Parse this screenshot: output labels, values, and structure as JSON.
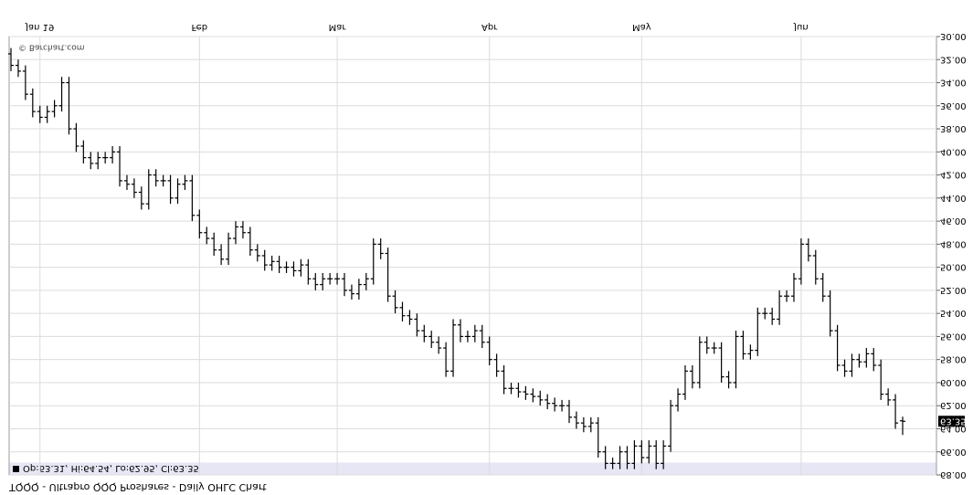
{
  "chart_data": {
    "type": "ohlc",
    "title": "TQQQ - Ultrapro QQQ Proshares - Daily OHLC Chart",
    "watermark": "© Barchart.com",
    "legend": "Op:63.31, Hi:64.54, Lo:62.95, Cl:63.35",
    "color": "#000000",
    "grid": true,
    "categories": [
      null,
      null,
      null,
      null,
      "Jan 19",
      null,
      null,
      null,
      null,
      null,
      null,
      null,
      null,
      null,
      null,
      null,
      null,
      null,
      null,
      null,
      null,
      null,
      null,
      null,
      null,
      null,
      "Feb",
      null,
      null,
      null,
      null,
      null,
      null,
      null,
      null,
      null,
      null,
      null,
      null,
      null,
      null,
      null,
      null,
      null,
      null,
      "Mar",
      null,
      null,
      null,
      null,
      null,
      null,
      null,
      null,
      null,
      null,
      null,
      null,
      null,
      null,
      null,
      null,
      null,
      null,
      null,
      null,
      "Apr",
      null,
      null,
      null,
      null,
      null,
      null,
      null,
      null,
      null,
      null,
      null,
      null,
      null,
      null,
      null,
      null,
      null,
      null,
      null,
      null,
      "May",
      null,
      null,
      null,
      null,
      null,
      null,
      null,
      null,
      null,
      null,
      null,
      null,
      null,
      null,
      null,
      null,
      null,
      null,
      null,
      null,
      null,
      "Jun",
      null,
      null,
      null,
      null,
      null,
      null,
      null,
      null,
      null,
      null,
      null,
      null,
      null,
      null
    ],
    "ohlc": [
      [
        31.5,
        33,
        31,
        32.5
      ],
      [
        32.5,
        33.5,
        32,
        33
      ],
      [
        33,
        35.5,
        32.5,
        35
      ],
      [
        35,
        37,
        34.5,
        36.5
      ],
      [
        36.5,
        37.5,
        36,
        37
      ],
      [
        37,
        37.5,
        36,
        36.5
      ],
      [
        36.5,
        37,
        35.5,
        36
      ],
      [
        36,
        36.5,
        33.5,
        34
      ],
      [
        34,
        38.5,
        33.5,
        38
      ],
      [
        38,
        40,
        37.5,
        39.5
      ],
      [
        39.5,
        41,
        39,
        40.5
      ],
      [
        40.5,
        41.5,
        40,
        41
      ],
      [
        41,
        41.5,
        40,
        40.5
      ],
      [
        40.5,
        41,
        40,
        40.5
      ],
      [
        40.5,
        41,
        39.5,
        40
      ],
      [
        40,
        43,
        39.5,
        42.5
      ],
      [
        42.5,
        43.3,
        42,
        42.8
      ],
      [
        42.8,
        44,
        42.3,
        43.5
      ],
      [
        43.5,
        45,
        43,
        44.5
      ],
      [
        44.5,
        45,
        41.5,
        42
      ],
      [
        42,
        43,
        41.5,
        42.5
      ],
      [
        42.5,
        43,
        42,
        42.5
      ],
      [
        42.5,
        44.5,
        42,
        44
      ],
      [
        44,
        44.5,
        42.3,
        42.8
      ],
      [
        42.8,
        43.3,
        42,
        42.5
      ],
      [
        42.5,
        46,
        42,
        45.5
      ],
      [
        45.5,
        47.5,
        45,
        47
      ],
      [
        47,
        48,
        46.5,
        47.5
      ],
      [
        47.5,
        49,
        47,
        48.5
      ],
      [
        48.5,
        49.8,
        48,
        49.3
      ],
      [
        49.3,
        49.8,
        47,
        47.5
      ],
      [
        47.5,
        48,
        46,
        46.5
      ],
      [
        46.5,
        47.5,
        46,
        47
      ],
      [
        47,
        49,
        46.5,
        48.5
      ],
      [
        48.5,
        49.5,
        48,
        49
      ],
      [
        49,
        50.3,
        48.5,
        49.8
      ],
      [
        49.8,
        50.3,
        49,
        49.5
      ],
      [
        49.5,
        50.5,
        49,
        50
      ],
      [
        50,
        50.5,
        49.5,
        50
      ],
      [
        50,
        50.8,
        49.5,
        50.3
      ],
      [
        50.3,
        50.8,
        49.3,
        49.8
      ],
      [
        49.8,
        51.5,
        49.3,
        51
      ],
      [
        51,
        52,
        50.5,
        51.5
      ],
      [
        51.5,
        52,
        50.5,
        51
      ],
      [
        51,
        51.5,
        50.5,
        51
      ],
      [
        51,
        51.5,
        50.5,
        51
      ],
      [
        51,
        52.5,
        50.5,
        52
      ],
      [
        52,
        52.8,
        51.5,
        52.3
      ],
      [
        52.3,
        52.8,
        51,
        51.5
      ],
      [
        51.5,
        52,
        50.5,
        51
      ],
      [
        51,
        51.5,
        47.5,
        48
      ],
      [
        48,
        49.3,
        47.5,
        48.8
      ],
      [
        48.8,
        53,
        48.3,
        52.5
      ],
      [
        52.5,
        54,
        52,
        53.5
      ],
      [
        53.5,
        54.7,
        53,
        54.2
      ],
      [
        54.2,
        55,
        53.7,
        54.5
      ],
      [
        54.5,
        56,
        54,
        55.5
      ],
      [
        55.5,
        56.5,
        55,
        56
      ],
      [
        56,
        57,
        55.5,
        56.5
      ],
      [
        56.5,
        57.5,
        56,
        57
      ],
      [
        57,
        59.5,
        56.5,
        59
      ],
      [
        59,
        59.5,
        54.5,
        55
      ],
      [
        55,
        56.5,
        54.5,
        56
      ],
      [
        56,
        56.5,
        55.5,
        56
      ],
      [
        56,
        56.5,
        55,
        55.5
      ],
      [
        55.5,
        57,
        55,
        56.5
      ],
      [
        56.5,
        58.5,
        56,
        58
      ],
      [
        58,
        59.5,
        57.5,
        59
      ],
      [
        59,
        61,
        58.5,
        60.5
      ],
      [
        60.5,
        61,
        60,
        60.5
      ],
      [
        60.5,
        61.3,
        60,
        60.8
      ],
      [
        60.8,
        61.5,
        60.3,
        61
      ],
      [
        61,
        61.7,
        60.5,
        61.2
      ],
      [
        61.2,
        62,
        60.7,
        61.5
      ],
      [
        61.5,
        62.3,
        61,
        61.8
      ],
      [
        61.8,
        62.5,
        61.3,
        62
      ],
      [
        62,
        62.5,
        61.5,
        62
      ],
      [
        62,
        63.5,
        61.5,
        63
      ],
      [
        63,
        64,
        62.5,
        63.5
      ],
      [
        63.5,
        64.3,
        63,
        63.8
      ],
      [
        63.8,
        64.3,
        63,
        63.5
      ],
      [
        63.5,
        66.5,
        63,
        66
      ],
      [
        66,
        67.5,
        65.5,
        67
      ],
      [
        67,
        67.5,
        66.5,
        67
      ],
      [
        67,
        67.5,
        65.5,
        66
      ],
      [
        66,
        67.5,
        65.5,
        67
      ],
      [
        67,
        67.5,
        65,
        65.5
      ],
      [
        65.5,
        67,
        65,
        66.5
      ],
      [
        66.5,
        67,
        65,
        65.5
      ],
      [
        65.5,
        67.5,
        65,
        67
      ],
      [
        67,
        67.5,
        65,
        65.5
      ],
      [
        65.5,
        66,
        61.5,
        62
      ],
      [
        62,
        62.5,
        60.5,
        61
      ],
      [
        61,
        61.5,
        58.5,
        59
      ],
      [
        59,
        60.5,
        58.5,
        60
      ],
      [
        60,
        60.5,
        56,
        56.5
      ],
      [
        56.5,
        57.5,
        56,
        57
      ],
      [
        57,
        57.5,
        56.5,
        57
      ],
      [
        57,
        60,
        56.5,
        59.5
      ],
      [
        59.5,
        60.5,
        59,
        60
      ],
      [
        60,
        60.5,
        55.5,
        56
      ],
      [
        56,
        58,
        55.5,
        57.5
      ],
      [
        57.5,
        58,
        56.7,
        57.2
      ],
      [
        57.2,
        57.7,
        53.5,
        54
      ],
      [
        54,
        54.5,
        53.5,
        54
      ],
      [
        54,
        55,
        53.5,
        54.5
      ],
      [
        54.5,
        55,
        52,
        52.5
      ],
      [
        52.5,
        53,
        52,
        52.5
      ],
      [
        52.5,
        53,
        50.5,
        51
      ],
      [
        51,
        51.5,
        47.5,
        48
      ],
      [
        48,
        49.5,
        47.5,
        49
      ],
      [
        49,
        51.5,
        48.5,
        51
      ],
      [
        51,
        53,
        50.5,
        52.5
      ],
      [
        52.5,
        56,
        52,
        55.5
      ],
      [
        55.5,
        59,
        55,
        58.5
      ],
      [
        58.5,
        59.5,
        58,
        59
      ],
      [
        59,
        59.5,
        57.5,
        58
      ],
      [
        58,
        58.7,
        57.5,
        58.2
      ],
      [
        58.2,
        58.7,
        57,
        57.5
      ],
      [
        57.5,
        59,
        57,
        58.5
      ],
      [
        58.5,
        61.5,
        58,
        61
      ],
      [
        61,
        62,
        60.5,
        61.5
      ],
      [
        61.5,
        64,
        61,
        63.5
      ],
      [
        63.31,
        64.54,
        62.95,
        63.35
      ]
    ],
    "ylim": [
      30,
      68
    ],
    "yticks": [
      {
        "value": 30,
        "label": "30.00"
      },
      {
        "value": 32,
        "label": "32.00"
      },
      {
        "value": 34,
        "label": "34.00"
      },
      {
        "value": 36,
        "label": "36.00"
      },
      {
        "value": 38,
        "label": "38.00"
      },
      {
        "value": 40,
        "label": "40.00"
      },
      {
        "value": 42,
        "label": "42.00"
      },
      {
        "value": 44,
        "label": "44.00"
      },
      {
        "value": 46,
        "label": "46.00"
      },
      {
        "value": 48,
        "label": "48.00"
      },
      {
        "value": 50,
        "label": "50.00"
      },
      {
        "value": 52,
        "label": "52.00"
      },
      {
        "value": 54,
        "label": "54.00"
      },
      {
        "value": 56,
        "label": "56.00"
      },
      {
        "value": 58,
        "label": "58.00"
      },
      {
        "value": 60,
        "label": "60.00"
      },
      {
        "value": 62,
        "label": "62.00"
      },
      {
        "value": 64,
        "label": "64.00"
      },
      {
        "value": 66,
        "label": "66.00"
      },
      {
        "value": 68,
        "label": "68.00"
      }
    ]
  }
}
